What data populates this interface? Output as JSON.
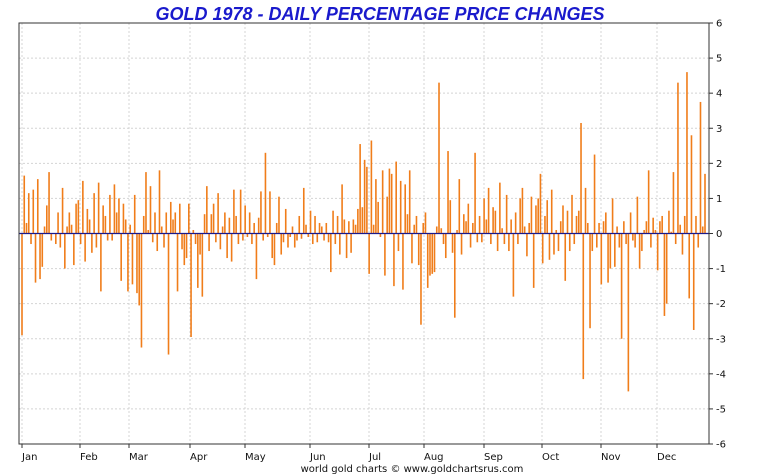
{
  "chart_data": {
    "type": "bar",
    "title": "GOLD 1978 - DAILY PERCENTAGE PRICE CHANGES",
    "footer": "world gold charts © www.goldchartsrus.com",
    "xlabel": "",
    "ylabel": "",
    "ylim": [
      -6,
      6
    ],
    "yticks": [
      6,
      5,
      4,
      3,
      2,
      1,
      0,
      -1,
      -2,
      -3,
      -4,
      -5,
      -6
    ],
    "months": [
      "Jan",
      "Feb",
      "Mar",
      "Apr",
      "May",
      "Jun",
      "Jul",
      "Aug",
      "Sep",
      "Oct",
      "Nov",
      "Dec"
    ],
    "grid": true,
    "colors": {
      "bar": "#f07d1a",
      "zero_line": "#1a1a8c",
      "title": "#1a1acc",
      "grid": "#d4d4d4",
      "axis": "#333333"
    },
    "values": [
      -2.9,
      1.65,
      0.3,
      1.15,
      -0.3,
      1.25,
      -1.4,
      1.55,
      -1.3,
      -0.95,
      0.2,
      0.8,
      1.75,
      -0.2,
      0,
      -0.3,
      0.6,
      -0.4,
      1.3,
      -1.0,
      0.2,
      0.6,
      0.25,
      -0.9,
      0.85,
      0.95,
      -0.3,
      1.5,
      -0.8,
      0.7,
      0.4,
      -0.55,
      1.15,
      -0.4,
      1.45,
      -1.65,
      0.8,
      0.5,
      -0.2,
      1.1,
      -0.2,
      1.4,
      0.6,
      1.0,
      -1.35,
      0.85,
      0.4,
      -1.65,
      0.25,
      -1.45,
      1.1,
      -1.7,
      -2.05,
      -3.25,
      0.5,
      1.75,
      0.1,
      1.35,
      -0.25,
      0.6,
      -0.5,
      1.8,
      0.2,
      -0.4,
      0.6,
      -3.45,
      0.9,
      0.4,
      0.6,
      -1.65,
      0.85,
      -0.45,
      -0.9,
      -0.7,
      0.85,
      -2.95,
      0.1,
      -0.3,
      -1.55,
      -0.6,
      -1.8,
      0.55,
      1.35,
      -0.5,
      0.55,
      0.85,
      -0.25,
      1.15,
      -0.45,
      0.2,
      0.6,
      -0.7,
      0.45,
      -0.8,
      1.25,
      0.5,
      -0.3,
      1.25,
      -0.2,
      0.8,
      -0.1,
      0.6,
      -0.3,
      0.3,
      -1.3,
      0.45,
      1.2,
      -0.2,
      2.3,
      -0.1,
      1.2,
      -0.7,
      -0.9,
      0.3,
      1.05,
      -0.6,
      -0.25,
      0.7,
      -0.4,
      -0.1,
      0.2,
      -0.4,
      -0.2,
      0.5,
      -0.15,
      1.3,
      0.25,
      -0.1,
      0.65,
      -0.3,
      0.5,
      -0.25,
      0.3,
      0.2,
      -0.2,
      0.3,
      -0.25,
      -1.1,
      0.65,
      -0.3,
      0.5,
      -0.6,
      1.4,
      0.4,
      -0.7,
      0.35,
      -0.55,
      0.4,
      0.25,
      0.7,
      2.55,
      0.75,
      2.1,
      1.9,
      -1.15,
      2.65,
      0.25,
      1.55,
      0.9,
      -0.1,
      1.8,
      -1.2,
      1.05,
      1.85,
      1.7,
      -1.5,
      2.05,
      -0.5,
      1.5,
      -1.6,
      1.4,
      0.55,
      1.8,
      -0.85,
      0.25,
      0.5,
      -0.9,
      -2.6,
      0.3,
      0.6,
      -1.55,
      -1.2,
      -1.15,
      -1.1,
      0.2,
      4.3,
      0.15,
      -0.3,
      -0.7,
      2.35,
      0.95,
      -0.55,
      -2.4,
      0.1,
      1.55,
      -0.6,
      0.55,
      0.35,
      0.85,
      -0.4,
      0.3,
      2.3,
      -0.25,
      0.5,
      -0.25,
      1.0,
      0.4,
      1.3,
      -0.3,
      0.75,
      0.65,
      -0.5,
      1.45,
      0.15,
      -0.3,
      1.1,
      -0.5,
      0.4,
      -1.8,
      0.6,
      -0.3,
      1.0,
      1.3,
      0.2,
      -0.65,
      0.3,
      1.05,
      -1.55,
      0.8,
      1.0,
      1.7,
      -0.85,
      0.5,
      0.95,
      -0.75,
      1.25,
      -0.6,
      0.1,
      -0.5,
      0.35,
      0.8,
      -1.35,
      0.65,
      -0.5,
      1.1,
      -0.3,
      0.5,
      0.65,
      3.15,
      -4.15,
      1.3,
      0.3,
      -2.7,
      -0.5,
      2.25,
      -0.4,
      0.3,
      -1.45,
      0.35,
      0.6,
      -1.4,
      -1.0,
      1.0,
      -0.95,
      0.2,
      -0.4,
      -3.0,
      0.35,
      -0.3,
      -4.5,
      0.6,
      -0.2,
      -0.4,
      1.05,
      -1.0,
      -0.5,
      0.1,
      0.35,
      1.8,
      -0.4,
      0.45,
      0.1,
      -1.05,
      0.35,
      0.5,
      -2.35,
      -2.0,
      0.65,
      0.05,
      1.75,
      -0.3,
      4.3,
      0.25,
      -0.6,
      0.5,
      4.6,
      -1.85,
      2.8,
      -2.75,
      0.5,
      -0.4,
      3.75,
      0.2,
      1.7
    ]
  }
}
